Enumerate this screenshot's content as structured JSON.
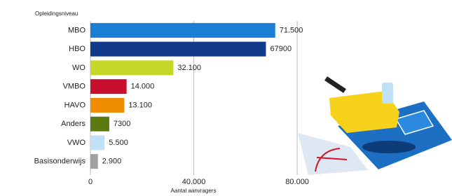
{
  "chart_data": {
    "type": "bar",
    "orientation": "horizontal",
    "y_axis_title": "Opleidingsniveau",
    "x_axis_title": "Aantal aanvragers",
    "categories": [
      "MBO",
      "HBO",
      "WO",
      "VMBO",
      "HAVO",
      "Anders",
      "VWO",
      "Basisonderwijs"
    ],
    "values": [
      71500,
      67900,
      32100,
      14000,
      13100,
      7300,
      5500,
      2900
    ],
    "value_labels": [
      "71.500",
      "67900",
      "32.100",
      "14.000",
      "13.100",
      "7300",
      "5.500",
      "2.900"
    ],
    "colors": [
      "#1a7fd4",
      "#123a8a",
      "#c5d82a",
      "#c8102e",
      "#f08c00",
      "#5a7a10",
      "#bfe0f7",
      "#a0a0a0"
    ],
    "xlim": [
      0,
      90000
    ],
    "xticks": [
      0,
      {
        "value": 40000,
        "label": "40.000"
      },
      {
        "value": 80000,
        "label": "80.000"
      }
    ],
    "grid": true
  }
}
